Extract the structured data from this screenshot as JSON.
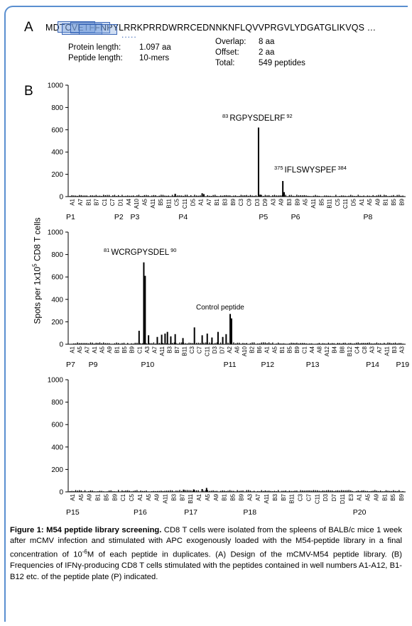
{
  "panel_a": {
    "letter": "A",
    "sequence": "MDTCVETFFNPYLRRKPRRDWRRCEDNNKNFLQVVPRGVLYDGATGLIKVQS …",
    "info_left": [
      {
        "label": "Protein length:",
        "value": "1.097 aa"
      },
      {
        "label": "Peptide length:",
        "value": "10-mers"
      }
    ],
    "info_right": [
      {
        "label": "Overlap:",
        "value": "8 aa"
      },
      {
        "label": "Offset:",
        "value": "2 aa"
      },
      {
        "label": "Total:",
        "value": "549 peptides"
      }
    ]
  },
  "panel_b": {
    "letter": "B",
    "ylabel_main": "Spots per 1x10",
    "ylabel_sup": "5",
    "ylabel_tail": " CD8 T cells"
  },
  "chart_data": [
    {
      "type": "bar",
      "ylim": [
        0,
        1000
      ],
      "yticks": [
        0,
        200,
        400,
        600,
        800,
        1000
      ],
      "ticklabels": [
        "A1",
        "A7",
        "B1",
        "B7",
        "C1",
        "C7",
        "D1",
        "A4",
        "A10",
        "A5",
        "A11",
        "B5",
        "B11",
        "C5",
        "C11",
        "D5",
        "A1",
        "A7",
        "B1",
        "B3",
        "B9",
        "C3",
        "C9",
        "D3",
        "D9",
        "A3",
        "A9",
        "B3",
        "B9",
        "A5",
        "A11",
        "B5",
        "B11",
        "C5",
        "C11",
        "D5",
        "A1",
        "A5",
        "A9",
        "B1",
        "B5",
        "B9"
      ],
      "plates": [
        {
          "label": "P1",
          "index": 0
        },
        {
          "label": "P2",
          "index": 6
        },
        {
          "label": "P3",
          "index": 8
        },
        {
          "label": "P4",
          "index": 14
        },
        {
          "label": "P5",
          "index": 24
        },
        {
          "label": "P6",
          "index": 28
        },
        {
          "label": "P8",
          "index": 37
        }
      ],
      "peaks": [
        {
          "pos": 0.562,
          "value": 620
        },
        {
          "pos": 0.567,
          "value": 18
        },
        {
          "pos": 0.634,
          "value": 140
        },
        {
          "pos": 0.638,
          "value": 40
        },
        {
          "pos": 0.315,
          "value": 25
        },
        {
          "pos": 0.395,
          "value": 30
        },
        {
          "pos": 0.4,
          "value": 22
        }
      ],
      "annotations": [
        {
          "pre": "83",
          "text": "RGPYSDELRF",
          "post": "92"
        },
        {
          "pre": "375",
          "text": "IFLSWYSPEF",
          "post": "384"
        }
      ]
    },
    {
      "type": "bar",
      "ylim": [
        0,
        1000
      ],
      "yticks": [
        0,
        200,
        400,
        600,
        800,
        1000
      ],
      "ticklabels": [
        "A1",
        "A5",
        "A7",
        "A1",
        "A5",
        "A9",
        "B1",
        "B5",
        "B9",
        "C1",
        "A3",
        "A7",
        "A11",
        "B3",
        "B7",
        "B11",
        "C3",
        "C7",
        "C11",
        "D3",
        "D7",
        "A2",
        "A6",
        "A10",
        "B2",
        "B6",
        "A1",
        "A5",
        "B1",
        "B5",
        "B9",
        "C1",
        "A4",
        "A8",
        "A12",
        "B4",
        "B8",
        "B12",
        "C4",
        "C8",
        "A3",
        "A7",
        "A11",
        "B3",
        "A3"
      ],
      "plates": [
        {
          "label": "P7",
          "index": 0
        },
        {
          "label": "P9",
          "index": 3
        },
        {
          "label": "P10",
          "index": 10
        },
        {
          "label": "P11",
          "index": 21
        },
        {
          "label": "P12",
          "index": 26
        },
        {
          "label": "P13",
          "index": 32
        },
        {
          "label": "P14",
          "index": 40
        },
        {
          "label": "P19",
          "index": 44
        }
      ],
      "peaks": [
        {
          "pos": 0.208,
          "value": 120
        },
        {
          "pos": 0.222,
          "value": 730
        },
        {
          "pos": 0.226,
          "value": 610
        },
        {
          "pos": 0.236,
          "value": 80
        },
        {
          "pos": 0.262,
          "value": 65
        },
        {
          "pos": 0.275,
          "value": 85
        },
        {
          "pos": 0.285,
          "value": 95
        },
        {
          "pos": 0.292,
          "value": 110
        },
        {
          "pos": 0.302,
          "value": 70
        },
        {
          "pos": 0.315,
          "value": 90
        },
        {
          "pos": 0.338,
          "value": 55
        },
        {
          "pos": 0.372,
          "value": 150
        },
        {
          "pos": 0.395,
          "value": 80
        },
        {
          "pos": 0.41,
          "value": 95
        },
        {
          "pos": 0.424,
          "value": 60
        },
        {
          "pos": 0.442,
          "value": 110
        },
        {
          "pos": 0.456,
          "value": 65
        },
        {
          "pos": 0.466,
          "value": 90
        },
        {
          "pos": 0.478,
          "value": 270
        },
        {
          "pos": 0.482,
          "value": 230
        }
      ],
      "annotations": [
        {
          "pre": "81",
          "text": "WCRGPYSDEL",
          "post": "90"
        },
        {
          "pre": "",
          "text": "Control peptide",
          "post": ""
        }
      ]
    },
    {
      "type": "bar",
      "ylim": [
        0,
        1000
      ],
      "yticks": [
        0,
        200,
        400,
        600,
        800,
        1000
      ],
      "ticklabels": [
        "A1",
        "A5",
        "A9",
        "B1",
        "B5",
        "B9",
        "C1",
        "C5",
        "A1",
        "A5",
        "A9",
        "A11",
        "B3",
        "B7",
        "B11",
        "A1",
        "A5",
        "A9",
        "B1",
        "B5",
        "B9",
        "A3",
        "A7",
        "A11",
        "B3",
        "B7",
        "B11",
        "C3",
        "C7",
        "C11",
        "D3",
        "D7",
        "D11",
        "E3",
        "A1",
        "A5",
        "A9",
        "B1",
        "B5",
        "B9"
      ],
      "plates": [
        {
          "label": "P15",
          "index": 0
        },
        {
          "label": "P16",
          "index": 8
        },
        {
          "label": "P17",
          "index": 14
        },
        {
          "label": "P18",
          "index": 21
        },
        {
          "label": "P20",
          "index": 34
        }
      ],
      "peaks": [
        {
          "pos": 0.408,
          "value": 35
        },
        {
          "pos": 0.395,
          "value": 25
        },
        {
          "pos": 0.37,
          "value": 22
        },
        {
          "pos": 0.34,
          "value": 20
        }
      ],
      "annotations": []
    }
  ],
  "caption": {
    "title": "Figure 1: M54 peptide library screening.",
    "body_1": " CD8 T cells were isolated from the spleens of BALB/c mice 1 week after mCMV infection and stimulated with APC exogenously loaded with the M54-peptide library in a final concentration of 10",
    "sup": "-6",
    "body_2": "M of each peptide in duplicates. (A) Design of the mCMV-M54 peptide library. (B) Frequencies of IFNγ-producing CD8 T cells stimulated with the peptides contained in well numbers A1-A12, B1-B12 etc. of the peptide plate (P) indicated."
  }
}
